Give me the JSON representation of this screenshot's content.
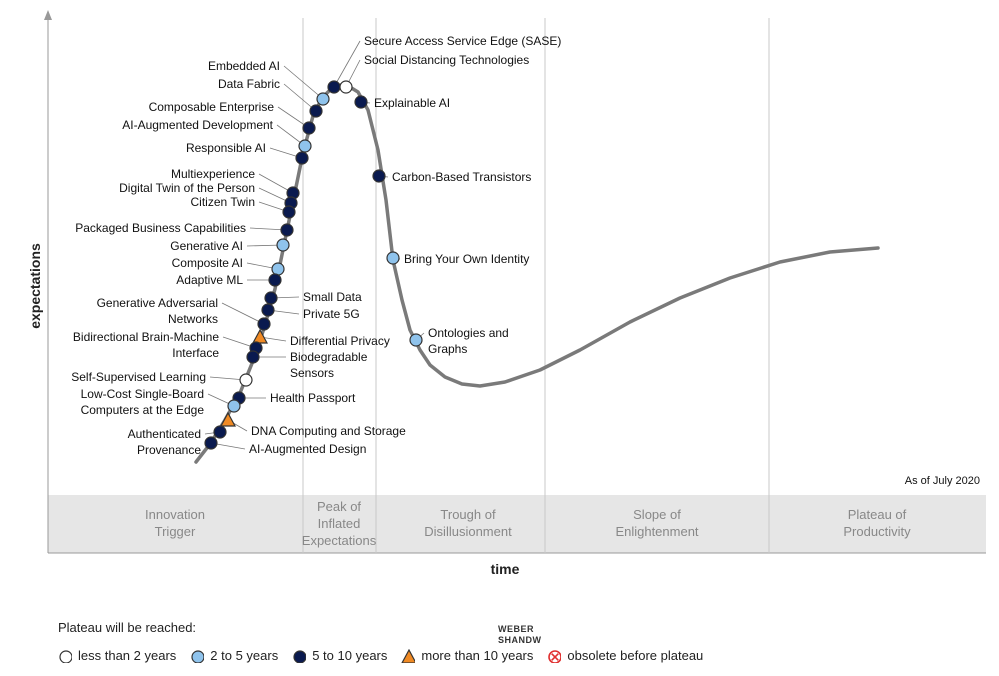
{
  "chart_data": {
    "type": "hype_cycle",
    "xlabel": "time",
    "ylabel": "expectations",
    "as_of": "As of July 2020",
    "phases": [
      {
        "lines": [
          "Innovation",
          "Trigger"
        ]
      },
      {
        "lines": [
          "Peak of",
          "Inflated",
          "Expectations"
        ]
      },
      {
        "lines": [
          "Trough of",
          "Disillusionment"
        ]
      },
      {
        "lines": [
          "Slope of",
          "Enlightenment"
        ]
      },
      {
        "lines": [
          "Plateau of",
          "Productivity"
        ]
      }
    ],
    "plateau_categories": {
      "lt2": {
        "label": "less than 2 years",
        "symbol": "circle",
        "fill": "#ffffff"
      },
      "2to5": {
        "label": "2 to 5 years",
        "symbol": "circle",
        "fill": "#8fc3ec"
      },
      "5to10": {
        "label": "5 to 10 years",
        "symbol": "circle",
        "fill": "#0a1a4f"
      },
      "gt10": {
        "label": "more than 10 years",
        "symbol": "triangle",
        "fill": "#f08a24"
      },
      "obsolete": {
        "label": "obsolete before plateau",
        "symbol": "x-circle",
        "fill": "#e03030"
      }
    },
    "technologies": [
      {
        "name": [
          "Secure Access Service Edge (SASE)"
        ],
        "category": "5to10"
      },
      {
        "name": [
          "Social Distancing Technologies"
        ],
        "category": "lt2"
      },
      {
        "name": [
          "Explainable AI"
        ],
        "category": "5to10"
      },
      {
        "name": [
          "Embedded AI"
        ],
        "category": "2to5"
      },
      {
        "name": [
          "Data Fabric"
        ],
        "category": "5to10"
      },
      {
        "name": [
          "Composable Enterprise"
        ],
        "category": "5to10"
      },
      {
        "name": [
          "AI-Augmented Development"
        ],
        "category": "2to5"
      },
      {
        "name": [
          "Responsible AI"
        ],
        "category": "5to10"
      },
      {
        "name": [
          "Multiexperience"
        ],
        "category": "5to10"
      },
      {
        "name": [
          "Digital Twin of the Person"
        ],
        "category": "5to10"
      },
      {
        "name": [
          "Citizen Twin"
        ],
        "category": "5to10"
      },
      {
        "name": [
          "Packaged Business Capabilities"
        ],
        "category": "5to10"
      },
      {
        "name": [
          "Generative AI"
        ],
        "category": "2to5"
      },
      {
        "name": [
          "Composite AI"
        ],
        "category": "2to5"
      },
      {
        "name": [
          "Adaptive ML"
        ],
        "category": "5to10"
      },
      {
        "name": [
          "Small Data"
        ],
        "category": "5to10"
      },
      {
        "name": [
          "Private 5G"
        ],
        "category": "5to10"
      },
      {
        "name": [
          "Generative Adversarial",
          "Networks"
        ],
        "category": "5to10"
      },
      {
        "name": [
          "Differential Privacy"
        ],
        "category": "gt10"
      },
      {
        "name": [
          "Bidirectional Brain-Machine",
          "Interface"
        ],
        "category": "5to10"
      },
      {
        "name": [
          "Biodegradable",
          "Sensors"
        ],
        "category": "5to10"
      },
      {
        "name": [
          "Self-Supervised Learning"
        ],
        "category": "lt2"
      },
      {
        "name": [
          "Health Passport"
        ],
        "category": "5to10"
      },
      {
        "name": [
          "Low-Cost Single-Board",
          "Computers at the Edge"
        ],
        "category": "2to5"
      },
      {
        "name": [
          "DNA Computing and Storage"
        ],
        "category": "gt10"
      },
      {
        "name": [
          "Authenticated",
          "Provenance"
        ],
        "category": "5to10"
      },
      {
        "name": [
          "AI-Augmented Design"
        ],
        "category": "5to10"
      },
      {
        "name": [
          "Carbon-Based Transistors"
        ],
        "category": "5to10"
      },
      {
        "name": [
          "Bring Your Own Identity"
        ],
        "category": "2to5"
      },
      {
        "name": [
          "Ontologies and",
          "Graphs"
        ],
        "category": "2to5"
      }
    ]
  },
  "legend": {
    "title": "Plateau will be reached:",
    "items": [
      {
        "key": "lt2",
        "label": "less than 2 years"
      },
      {
        "key": "2to5",
        "label": "2 to 5 years"
      },
      {
        "key": "5to10",
        "label": "5 to 10 years"
      },
      {
        "key": "gt10",
        "label": "more than 10 years"
      },
      {
        "key": "obsolete",
        "label": "obsolete before plateau"
      }
    ]
  },
  "watermark": {
    "lines": [
      "WEBER",
      "SHANDW"
    ]
  },
  "colors": {
    "curve": "#7a7a7a",
    "band": "#e6e6e6",
    "divider": "#c8c8c8",
    "axis": "#999999"
  }
}
